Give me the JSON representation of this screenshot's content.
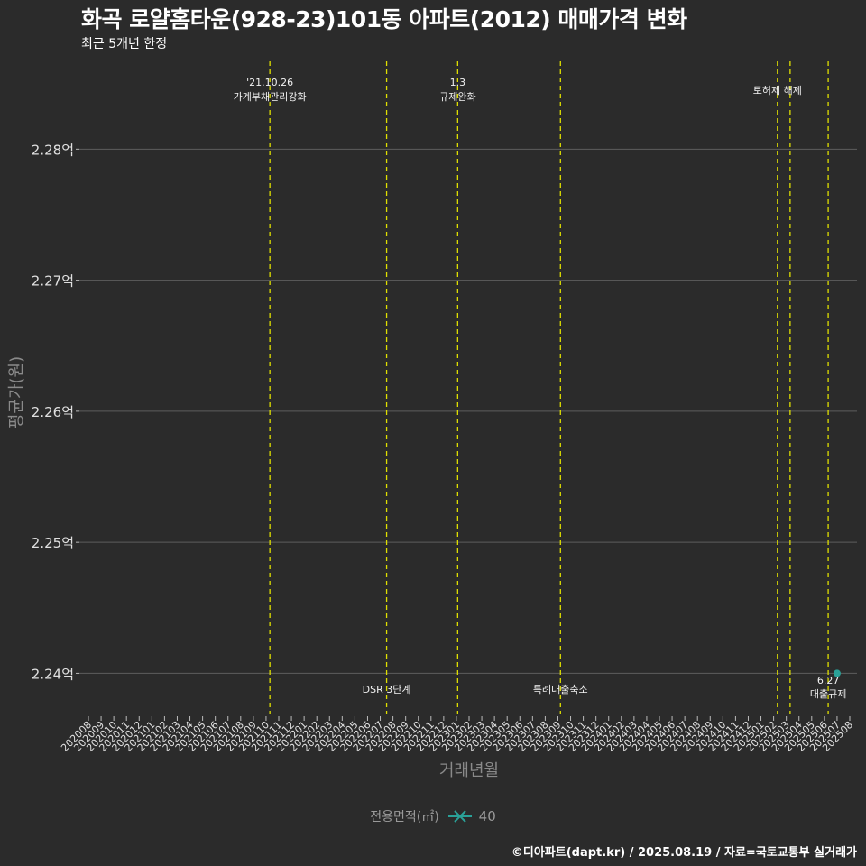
{
  "chart_data": {
    "type": "line",
    "title": "화곡 로얄홈타운(928-23)101동 아파트(2012) 매매가격 변화",
    "subtitle": "최근 5개년 한정",
    "xlabel": "거래년월",
    "ylabel": "평균가(원)",
    "ylim": [
      2.237,
      2.2867
    ],
    "y_unit": "억",
    "y_ticks": [
      2.24,
      2.25,
      2.26,
      2.27,
      2.28
    ],
    "y_tick_labels": [
      "2.24억",
      "2.25억",
      "2.26억",
      "2.27억",
      "2.28억"
    ],
    "categories": [
      "202008",
      "202009",
      "202010",
      "202011",
      "202012",
      "202101",
      "202102",
      "202103",
      "202104",
      "202105",
      "202106",
      "202107",
      "202108",
      "202109",
      "202110",
      "202111",
      "202112",
      "202201",
      "202202",
      "202203",
      "202204",
      "202205",
      "202206",
      "202207",
      "202208",
      "202209",
      "202210",
      "202211",
      "202212",
      "202301",
      "202302",
      "202303",
      "202304",
      "202305",
      "202306",
      "202307",
      "202308",
      "202309",
      "202310",
      "202311",
      "202312",
      "202401",
      "202402",
      "202403",
      "202404",
      "202405",
      "202406",
      "202407",
      "202408",
      "202409",
      "202410",
      "202411",
      "202412",
      "202501",
      "202502",
      "202503",
      "202504",
      "202505",
      "202506",
      "202507",
      "202508"
    ],
    "series": [
      {
        "name": "40",
        "color": "#2aa198",
        "points": [
          {
            "x": "202507",
            "y": 2.24
          }
        ]
      }
    ],
    "legend": {
      "title": "전용면적(㎡)",
      "position": "bottom"
    },
    "annotations": [
      {
        "x": 14.3,
        "lines": [
          "'21.10.26",
          "가계부채관리강화"
        ],
        "position": "top"
      },
      {
        "x": 23.5,
        "lines": [
          "DSR 3단계"
        ],
        "position": "bottom"
      },
      {
        "x": 29.1,
        "lines": [
          "1.3",
          "규제완화"
        ],
        "position": "top"
      },
      {
        "x": 37.2,
        "lines": [
          "특례대출축소"
        ],
        "position": "bottom"
      },
      {
        "x": 54.3,
        "lines": [
          "토허제 해제"
        ],
        "position": "top"
      },
      {
        "x": 55.3,
        "lines": [],
        "position": "top"
      },
      {
        "x": 58.3,
        "lines": [
          "6.27",
          "대출규제"
        ],
        "position": "bottom"
      }
    ],
    "grid": true,
    "line_color": "#e0e000"
  },
  "footer": {
    "credit": "©디아파트(dapt.kr) / 2025.08.19 / 자료=국토교통부 실거래가"
  }
}
